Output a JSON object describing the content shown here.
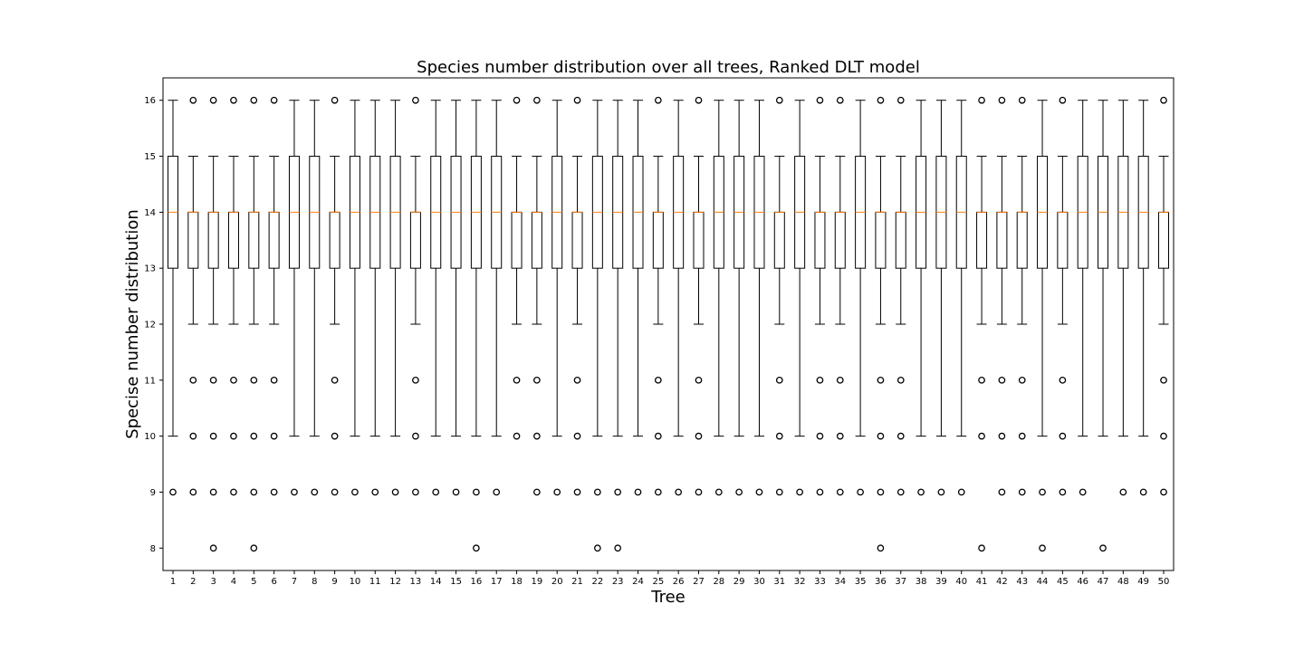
{
  "chart_data": {
    "type": "box",
    "title": "Species number distribution over all trees, Ranked DLT model",
    "xlabel": "Tree",
    "ylabel": "Specise number distribution",
    "ylim": [
      7.6,
      16.4
    ],
    "yticks": [
      8,
      9,
      10,
      11,
      12,
      13,
      14,
      15,
      16
    ],
    "categories": [
      "1",
      "2",
      "3",
      "4",
      "5",
      "6",
      "7",
      "8",
      "9",
      "10",
      "11",
      "12",
      "13",
      "14",
      "15",
      "16",
      "17",
      "18",
      "19",
      "20",
      "21",
      "22",
      "23",
      "24",
      "25",
      "26",
      "27",
      "28",
      "29",
      "30",
      "31",
      "32",
      "33",
      "34",
      "35",
      "36",
      "37",
      "38",
      "39",
      "40",
      "41",
      "42",
      "43",
      "44",
      "45",
      "46",
      "47",
      "48",
      "49",
      "50"
    ],
    "boxes": [
      {
        "q1": 13,
        "median": 14,
        "q3": 15,
        "wlo": 10,
        "whi": 16,
        "outliers": [
          9
        ]
      },
      {
        "q1": 13,
        "median": 14,
        "q3": 14,
        "wlo": 12,
        "whi": 15,
        "outliers": [
          9,
          10,
          11,
          16
        ]
      },
      {
        "q1": 13,
        "median": 14,
        "q3": 14,
        "wlo": 12,
        "whi": 15,
        "outliers": [
          8,
          9,
          10,
          11,
          16
        ]
      },
      {
        "q1": 13,
        "median": 14,
        "q3": 14,
        "wlo": 12,
        "whi": 15,
        "outliers": [
          9,
          10,
          11,
          16
        ]
      },
      {
        "q1": 13,
        "median": 14,
        "q3": 14,
        "wlo": 12,
        "whi": 15,
        "outliers": [
          8,
          9,
          10,
          11,
          16
        ]
      },
      {
        "q1": 13,
        "median": 14,
        "q3": 14,
        "wlo": 12,
        "whi": 15,
        "outliers": [
          9,
          10,
          11,
          16
        ]
      },
      {
        "q1": 13,
        "median": 14,
        "q3": 15,
        "wlo": 10,
        "whi": 16,
        "outliers": [
          9
        ]
      },
      {
        "q1": 13,
        "median": 14,
        "q3": 15,
        "wlo": 10,
        "whi": 16,
        "outliers": [
          9
        ]
      },
      {
        "q1": 13,
        "median": 14,
        "q3": 14,
        "wlo": 12,
        "whi": 15,
        "outliers": [
          9,
          10,
          11,
          16
        ]
      },
      {
        "q1": 13,
        "median": 14,
        "q3": 15,
        "wlo": 10,
        "whi": 16,
        "outliers": [
          9
        ]
      },
      {
        "q1": 13,
        "median": 14,
        "q3": 15,
        "wlo": 10,
        "whi": 16,
        "outliers": [
          9
        ]
      },
      {
        "q1": 13,
        "median": 14,
        "q3": 15,
        "wlo": 10,
        "whi": 16,
        "outliers": [
          9
        ]
      },
      {
        "q1": 13,
        "median": 14,
        "q3": 14,
        "wlo": 12,
        "whi": 15,
        "outliers": [
          9,
          10,
          11,
          16
        ]
      },
      {
        "q1": 13,
        "median": 14,
        "q3": 15,
        "wlo": 10,
        "whi": 16,
        "outliers": [
          9
        ]
      },
      {
        "q1": 13,
        "median": 14,
        "q3": 15,
        "wlo": 10,
        "whi": 16,
        "outliers": [
          9
        ]
      },
      {
        "q1": 13,
        "median": 14,
        "q3": 15,
        "wlo": 10,
        "whi": 16,
        "outliers": [
          8,
          9
        ]
      },
      {
        "q1": 13,
        "median": 14,
        "q3": 15,
        "wlo": 10,
        "whi": 16,
        "outliers": [
          9
        ]
      },
      {
        "q1": 13,
        "median": 14,
        "q3": 14,
        "wlo": 12,
        "whi": 15,
        "outliers": [
          10,
          11,
          16
        ]
      },
      {
        "q1": 13,
        "median": 14,
        "q3": 14,
        "wlo": 12,
        "whi": 15,
        "outliers": [
          9,
          10,
          11,
          16
        ]
      },
      {
        "q1": 13,
        "median": 14,
        "q3": 15,
        "wlo": 10,
        "whi": 16,
        "outliers": [
          9
        ]
      },
      {
        "q1": 13,
        "median": 14,
        "q3": 14,
        "wlo": 12,
        "whi": 15,
        "outliers": [
          9,
          10,
          11,
          16
        ]
      },
      {
        "q1": 13,
        "median": 14,
        "q3": 15,
        "wlo": 10,
        "whi": 16,
        "outliers": [
          8,
          9
        ]
      },
      {
        "q1": 13,
        "median": 14,
        "q3": 15,
        "wlo": 10,
        "whi": 16,
        "outliers": [
          8,
          9
        ]
      },
      {
        "q1": 13,
        "median": 14,
        "q3": 15,
        "wlo": 10,
        "whi": 16,
        "outliers": [
          9
        ]
      },
      {
        "q1": 13,
        "median": 14,
        "q3": 14,
        "wlo": 12,
        "whi": 15,
        "outliers": [
          9,
          10,
          11,
          16
        ]
      },
      {
        "q1": 13,
        "median": 14,
        "q3": 15,
        "wlo": 10,
        "whi": 16,
        "outliers": [
          9
        ]
      },
      {
        "q1": 13,
        "median": 14,
        "q3": 14,
        "wlo": 12,
        "whi": 15,
        "outliers": [
          9,
          10,
          11,
          16
        ]
      },
      {
        "q1": 13,
        "median": 14,
        "q3": 15,
        "wlo": 10,
        "whi": 16,
        "outliers": [
          9
        ]
      },
      {
        "q1": 13,
        "median": 14,
        "q3": 15,
        "wlo": 10,
        "whi": 16,
        "outliers": [
          9
        ]
      },
      {
        "q1": 13,
        "median": 14,
        "q3": 15,
        "wlo": 10,
        "whi": 16,
        "outliers": [
          9
        ]
      },
      {
        "q1": 13,
        "median": 14,
        "q3": 14,
        "wlo": 12,
        "whi": 15,
        "outliers": [
          9,
          10,
          11,
          16
        ]
      },
      {
        "q1": 13,
        "median": 14,
        "q3": 15,
        "wlo": 10,
        "whi": 16,
        "outliers": [
          9
        ]
      },
      {
        "q1": 13,
        "median": 14,
        "q3": 14,
        "wlo": 12,
        "whi": 15,
        "outliers": [
          9,
          10,
          11,
          16
        ]
      },
      {
        "q1": 13,
        "median": 14,
        "q3": 14,
        "wlo": 12,
        "whi": 15,
        "outliers": [
          9,
          10,
          11,
          16
        ]
      },
      {
        "q1": 13,
        "median": 14,
        "q3": 15,
        "wlo": 10,
        "whi": 16,
        "outliers": [
          9
        ]
      },
      {
        "q1": 13,
        "median": 14,
        "q3": 14,
        "wlo": 12,
        "whi": 15,
        "outliers": [
          8,
          9,
          10,
          11,
          16
        ]
      },
      {
        "q1": 13,
        "median": 14,
        "q3": 14,
        "wlo": 12,
        "whi": 15,
        "outliers": [
          9,
          10,
          11,
          16
        ]
      },
      {
        "q1": 13,
        "median": 14,
        "q3": 15,
        "wlo": 10,
        "whi": 16,
        "outliers": [
          9
        ]
      },
      {
        "q1": 13,
        "median": 14,
        "q3": 15,
        "wlo": 10,
        "whi": 16,
        "outliers": [
          9
        ]
      },
      {
        "q1": 13,
        "median": 14,
        "q3": 15,
        "wlo": 10,
        "whi": 16,
        "outliers": [
          9
        ]
      },
      {
        "q1": 13,
        "median": 14,
        "q3": 14,
        "wlo": 12,
        "whi": 15,
        "outliers": [
          8,
          10,
          11,
          16
        ]
      },
      {
        "q1": 13,
        "median": 14,
        "q3": 14,
        "wlo": 12,
        "whi": 15,
        "outliers": [
          9,
          10,
          11,
          16
        ]
      },
      {
        "q1": 13,
        "median": 14,
        "q3": 14,
        "wlo": 12,
        "whi": 15,
        "outliers": [
          9,
          10,
          11,
          16
        ]
      },
      {
        "q1": 13,
        "median": 14,
        "q3": 15,
        "wlo": 10,
        "whi": 16,
        "outliers": [
          8,
          9
        ]
      },
      {
        "q1": 13,
        "median": 14,
        "q3": 14,
        "wlo": 12,
        "whi": 15,
        "outliers": [
          9,
          10,
          11,
          16
        ]
      },
      {
        "q1": 13,
        "median": 14,
        "q3": 15,
        "wlo": 10,
        "whi": 16,
        "outliers": [
          9
        ]
      },
      {
        "q1": 13,
        "median": 14,
        "q3": 15,
        "wlo": 10,
        "whi": 16,
        "outliers": [
          8
        ]
      },
      {
        "q1": 13,
        "median": 14,
        "q3": 15,
        "wlo": 10,
        "whi": 16,
        "outliers": [
          9
        ]
      },
      {
        "q1": 13,
        "median": 14,
        "q3": 15,
        "wlo": 10,
        "whi": 16,
        "outliers": [
          9
        ]
      },
      {
        "q1": 13,
        "median": 14,
        "q3": 14,
        "wlo": 12,
        "whi": 15,
        "outliers": [
          9,
          10,
          11,
          16
        ]
      }
    ],
    "colors": {
      "box": "#000000",
      "median": "#ff7f0e",
      "outlier": "#000000"
    },
    "grid": false,
    "legend": "none"
  }
}
